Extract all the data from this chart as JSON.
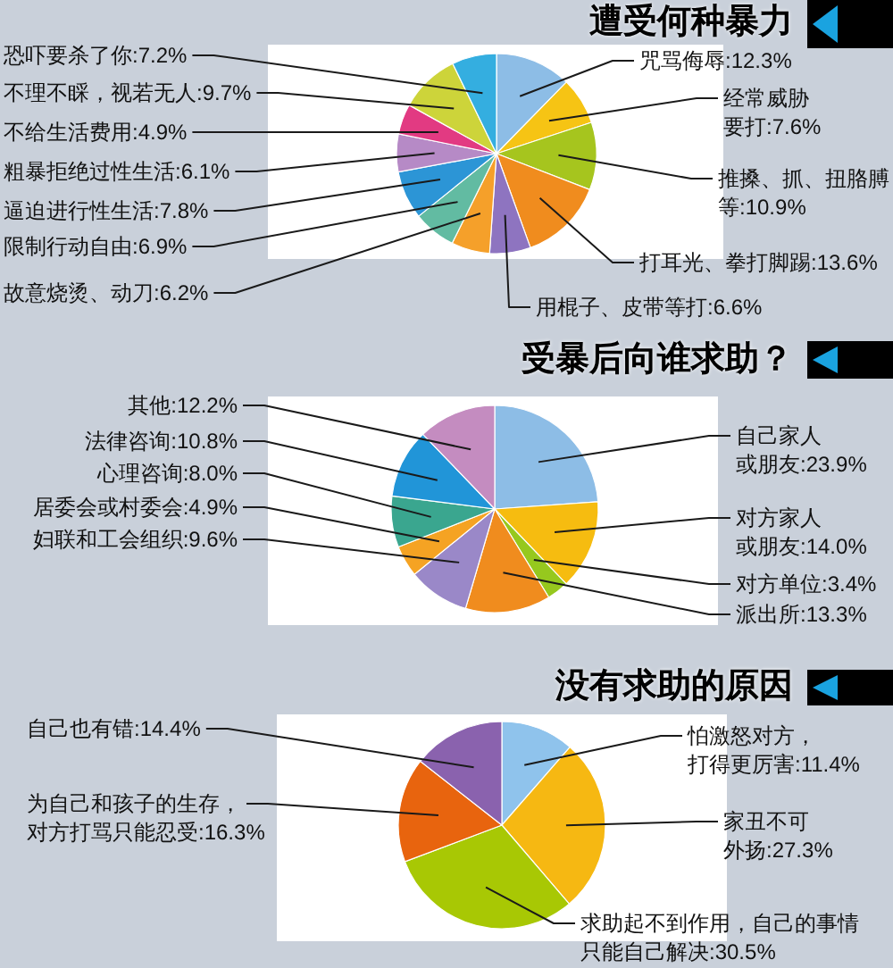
{
  "chart_data": [
    {
      "type": "pie",
      "title": "遭受何种暴力",
      "categories": [
        "咒骂侮辱",
        "经常威胁要打",
        "推搡、抓、扭胳膊等",
        "打耳光、拳打脚踢",
        "用棍子、皮带等打",
        "故意烧烫、动刀",
        "限制行动自由",
        "逼迫进行性生活",
        "粗暴拒绝过性生活",
        "不给生活费用",
        "不理不睬，视若无人",
        "恐吓要杀了你"
      ],
      "values": [
        12.3,
        7.6,
        10.9,
        13.6,
        6.6,
        6.2,
        6.9,
        7.8,
        6.1,
        4.9,
        9.7,
        7.2
      ],
      "value_labels": [
        "12.3%",
        "7.6%",
        "10.9%",
        "13.6%",
        "6.6%",
        "6.2%",
        "6.9%",
        "7.8%",
        "6.1%",
        "4.9%",
        "9.7%",
        "7.2%"
      ],
      "colors": [
        "#8dbde6",
        "#f6c414",
        "#a6c51e",
        "#f08c1e",
        "#8e74c0",
        "#f5a02a",
        "#62bba2",
        "#2c95d6",
        "#b68ac6",
        "#e23a82",
        "#cdd43a",
        "#34aee0"
      ]
    },
    {
      "type": "pie",
      "title": "受暴后向谁求助？",
      "categories": [
        "自己家人或朋友",
        "对方家人或朋友",
        "对方单位",
        "派出所",
        "妇联和工会组织",
        "居委会或村委会",
        "心理咨询",
        "法律咨询",
        "其他"
      ],
      "values": [
        23.9,
        14.0,
        3.4,
        13.3,
        9.6,
        4.9,
        8.0,
        10.8,
        12.2
      ],
      "value_labels": [
        "23.9%",
        "14.0%",
        "3.4%",
        "13.3%",
        "9.6%",
        "4.9%",
        "8.0%",
        "10.8%",
        "12.2%"
      ],
      "colors": [
        "#8dbde6",
        "#f6bc10",
        "#96c81e",
        "#f08c1e",
        "#9a88c8",
        "#f5a323",
        "#3aa68f",
        "#2195d8",
        "#c48cc0"
      ]
    },
    {
      "type": "pie",
      "title": "没有求助的原因",
      "categories": [
        "怕激怒对方，打得更厉害",
        "家丑不可外扬",
        "求助起不到作用，自己的事情只能自己解决",
        "为自己和孩子的生存，对方打骂只能忍受",
        "自己也有错"
      ],
      "values": [
        11.4,
        27.3,
        30.5,
        16.3,
        14.4
      ],
      "value_labels": [
        "11.4%",
        "27.3%",
        "30.5%",
        "16.3%",
        "14.4%"
      ],
      "colors": [
        "#8fc3ec",
        "#f6b812",
        "#a8c804",
        "#e8640e",
        "#8a62ae"
      ]
    }
  ]
}
